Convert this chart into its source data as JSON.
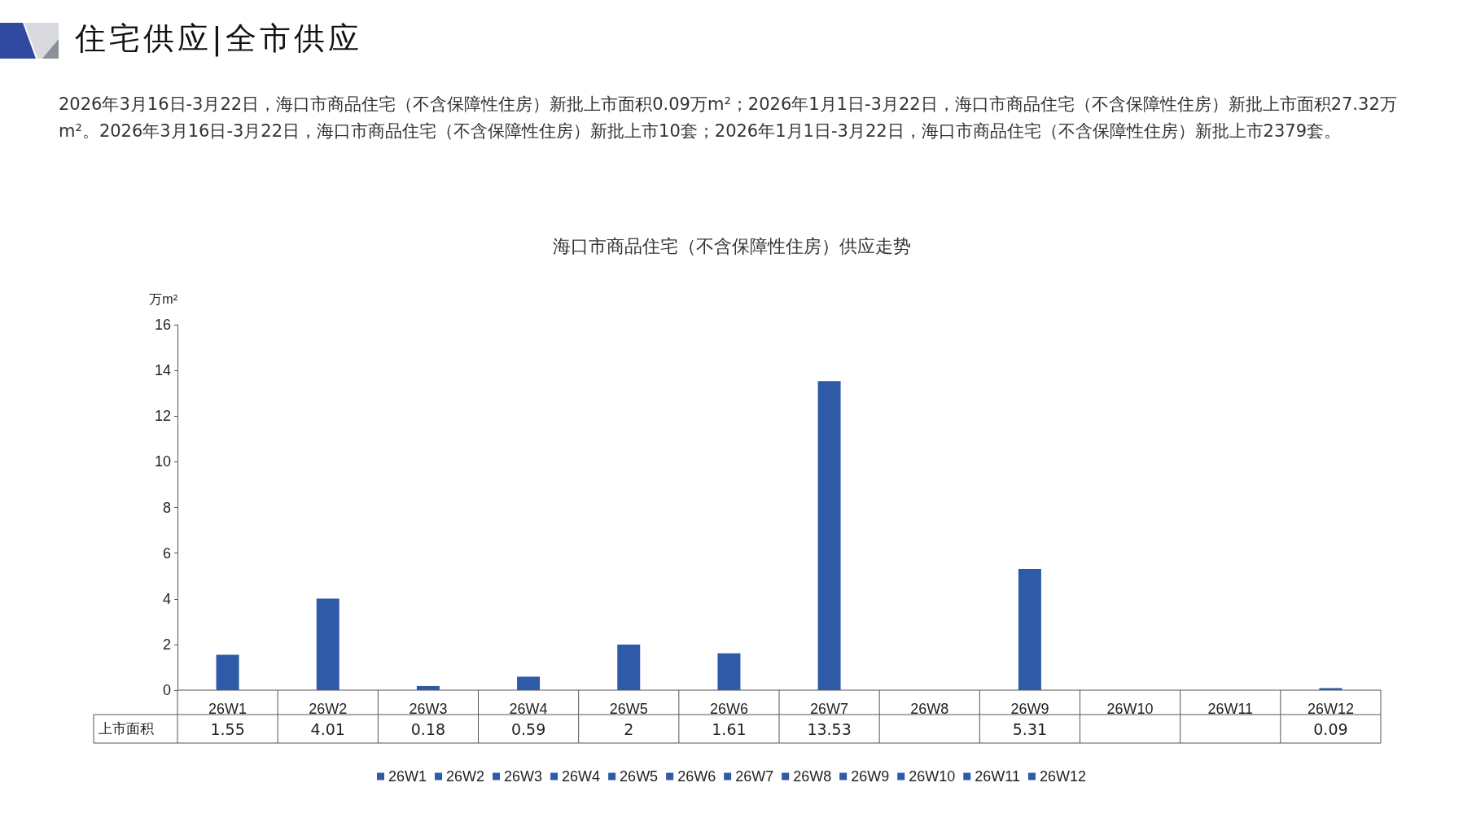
{
  "chart_data": {
    "type": "bar",
    "title": "海口市商品住宅（不含保障性住房）供应走势",
    "subtitle": "2026年3月16日-3月22日，海口市商品住宅（不含保障性住房）新批上市面积0.09万m²；2026年1月1日-3月22日，海口市商品住宅（不含保障性住房）新批上市面积27.32万m²。2026年3月16日-3月22日，海口市商品住宅（不含保障性住房）新批上市10套；2026年1月1日-3月22日，海口市商品住宅（不含保障性住房）新批上市2379套。",
    "ylabel": "万m²",
    "annotations": [
      "住宅供应|全市供应",
      "上市面积"
    ],
    "categories": [
      "26W1",
      "26W2",
      "26W3",
      "26W4",
      "26W5",
      "26W6",
      "26W7",
      "26W8",
      "26W9",
      "26W10",
      "26W11",
      "26W12"
    ],
    "stacked": true,
    "series": [
      {
        "name": "26W1",
        "color": "#2f5aa8",
        "values": [
          1.55,
          null,
          null,
          null,
          null,
          null,
          null,
          null,
          null,
          null,
          null,
          null
        ]
      },
      {
        "name": "26W2",
        "color": "#2f5aa8",
        "values": [
          null,
          4.01,
          null,
          null,
          null,
          null,
          null,
          null,
          null,
          null,
          null,
          null
        ]
      },
      {
        "name": "26W3",
        "color": "#2f5aa8",
        "values": [
          null,
          null,
          0.18,
          null,
          null,
          null,
          null,
          null,
          null,
          null,
          null,
          null
        ]
      },
      {
        "name": "26W4",
        "color": "#2f5aa8",
        "values": [
          null,
          null,
          null,
          0.59,
          null,
          null,
          null,
          null,
          null,
          null,
          null,
          null
        ]
      },
      {
        "name": "26W5",
        "color": "#2f5aa8",
        "values": [
          null,
          null,
          null,
          null,
          2,
          null,
          null,
          null,
          null,
          null,
          null,
          null
        ]
      },
      {
        "name": "26W6",
        "color": "#2f5aa8",
        "values": [
          null,
          null,
          null,
          null,
          null,
          1.61,
          null,
          null,
          null,
          null,
          null,
          null
        ]
      },
      {
        "name": "26W7",
        "color": "#2f5aa8",
        "values": [
          null,
          null,
          null,
          null,
          null,
          null,
          13.53,
          null,
          null,
          null,
          null,
          null
        ]
      },
      {
        "name": "26W8",
        "color": "#2f5aa8",
        "values": [
          null,
          null,
          null,
          null,
          null,
          null,
          null,
          null,
          null,
          null,
          null,
          null
        ]
      },
      {
        "name": "26W9",
        "color": "#2f5aa8",
        "values": [
          null,
          null,
          null,
          null,
          null,
          null,
          null,
          null,
          5.31,
          null,
          null,
          null
        ]
      },
      {
        "name": "26W10",
        "color": "#2f5aa8",
        "values": [
          null,
          null,
          null,
          null,
          null,
          null,
          null,
          null,
          null,
          null,
          null,
          null
        ]
      },
      {
        "name": "26W11",
        "color": "#2f5aa8",
        "values": [
          null,
          null,
          null,
          null,
          null,
          null,
          null,
          null,
          null,
          null,
          null,
          null
        ]
      },
      {
        "name": "26W12",
        "color": "#2f5aa8",
        "values": [
          null,
          null,
          null,
          null,
          null,
          null,
          null,
          null,
          null,
          null,
          null,
          0.09
        ]
      }
    ],
    "ylim": [
      0,
      16
    ],
    "yticks": [
      0,
      2,
      4,
      6,
      8,
      10,
      12,
      14,
      16
    ],
    "data_labels": true,
    "legend": "bottom"
  }
}
